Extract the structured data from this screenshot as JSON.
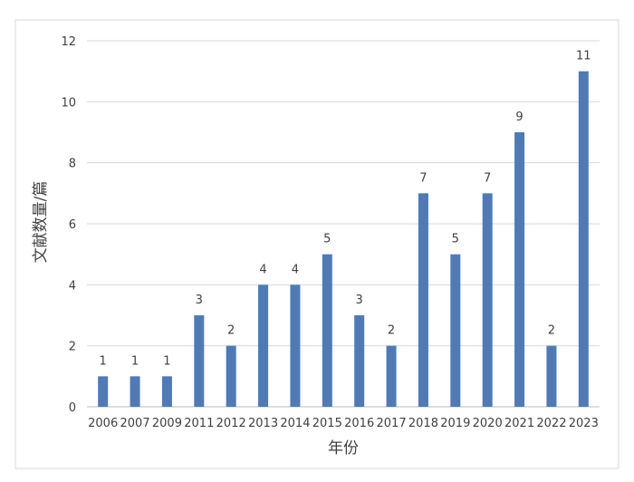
{
  "chart_data": {
    "type": "bar",
    "categories": [
      "2006",
      "2007",
      "2009",
      "2011",
      "2012",
      "2013",
      "2014",
      "2015",
      "2016",
      "2017",
      "2018",
      "2019",
      "2020",
      "2021",
      "2022",
      "2023"
    ],
    "values": [
      1,
      1,
      1,
      3,
      2,
      4,
      4,
      5,
      3,
      2,
      7,
      5,
      7,
      9,
      2,
      11
    ],
    "xlabel": "年份",
    "ylabel": "文献数量/篇",
    "ylim": [
      0,
      12
    ],
    "yticks": [
      0,
      2,
      4,
      6,
      8,
      10,
      12
    ],
    "grid": true,
    "data_labels": true,
    "bar_color": "#4f7ab8"
  }
}
